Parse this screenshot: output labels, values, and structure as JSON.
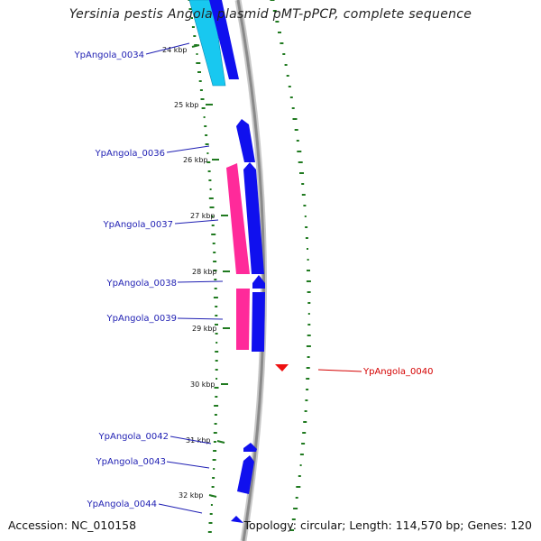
{
  "title": "Yersinia pestis Angola plasmid pMT-pPCP, complete sequence",
  "accession": "Accession: NC_010158",
  "summary": "Topology: circular; Length: 114,570 bp; Genes: 120",
  "colors": {
    "gene_label": "#1f1fb3",
    "highlight_label": "#d40000",
    "gc_dots": "#207a20",
    "backbone": "#8a8a8a",
    "gene_blue": "#1010ee",
    "gene_cyan": "#18c8f0",
    "gene_pink": "#ff2a9a",
    "gene_red": "#ee1111"
  },
  "ticks": [
    "24 kbp",
    "25 kbp",
    "26 kbp",
    "27 kbp",
    "28 kbp",
    "29 kbp",
    "30 kbp",
    "31 kbp",
    "32 kbp"
  ],
  "genes": [
    {
      "label": "YpAngola_0034",
      "highlight": false
    },
    {
      "label": "YpAngola_0036",
      "highlight": false
    },
    {
      "label": "YpAngola_0037",
      "highlight": false
    },
    {
      "label": "YpAngola_0038",
      "highlight": false
    },
    {
      "label": "YpAngola_0039",
      "highlight": false
    },
    {
      "label": "YpAngola_0040",
      "highlight": true
    },
    {
      "label": "YpAngola_0042",
      "highlight": false
    },
    {
      "label": "YpAngola_0043",
      "highlight": false
    },
    {
      "label": "YpAngola_0044",
      "highlight": false
    }
  ]
}
